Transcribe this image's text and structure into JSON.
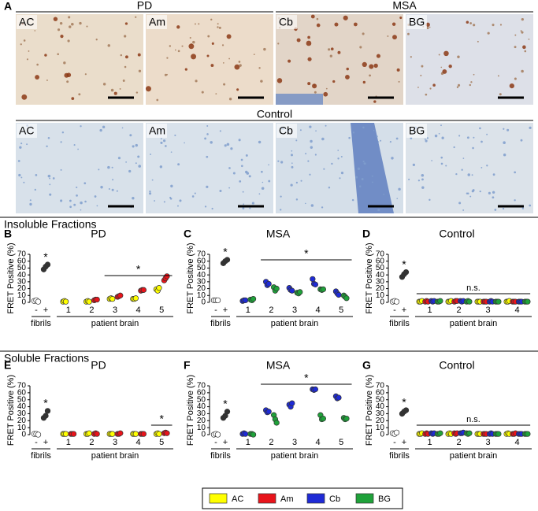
{
  "panel_a": {
    "label": "A",
    "rows": [
      {
        "groups": [
          "PD",
          "MSA"
        ],
        "tiles": [
          "AC",
          "Am",
          "Cb",
          "BG"
        ]
      },
      {
        "groups": [
          "Control"
        ],
        "tiles": [
          "AC",
          "Am",
          "Cb",
          "BG"
        ]
      }
    ]
  },
  "sections": [
    "Insoluble Fractions",
    "Soluble Fractions"
  ],
  "legend": [
    {
      "name": "AC",
      "color": "#ffff00"
    },
    {
      "name": "Am",
      "color": "#e8141b"
    },
    {
      "name": "Cb",
      "color": "#1f2bd6"
    },
    {
      "name": "BG",
      "color": "#1fa23a"
    }
  ],
  "chart_data": [
    {
      "type": "scatter",
      "panel": "B",
      "title": "PD",
      "ylabel": "FRET Positive (%)",
      "ylim": [
        0,
        70
      ],
      "yticks": [
        0,
        10,
        20,
        30,
        40,
        50,
        60,
        70
      ],
      "fibril_categories": [
        "-",
        "+"
      ],
      "fibril_label": "fibrils",
      "fibril_colors": [
        "#ffffff",
        "#333333"
      ],
      "fibril_values": [
        [
          2,
          3,
          1
        ],
        [
          48,
          52,
          55
        ]
      ],
      "fibril_mark": "*",
      "patients": [
        "1",
        "2",
        "3",
        "4",
        "5"
      ],
      "patient_label": "patient brain",
      "sig_label": "*",
      "series": [
        {
          "color": "#ffff00",
          "values": [
            [
              1,
              2,
              1
            ],
            [
              1,
              2,
              1
            ],
            [
              5,
              6,
              5
            ],
            [
              5,
              5,
              6
            ],
            [
              19,
              17,
              21
            ]
          ]
        },
        {
          "color": "#e8141b",
          "values": [
            null,
            [
              3,
              4,
              4
            ],
            [
              8,
              9,
              10
            ],
            [
              17,
              18,
              18
            ],
            [
              32,
              35,
              38
            ]
          ]
        }
      ]
    },
    {
      "type": "scatter",
      "panel": "C",
      "title": "MSA",
      "ylabel": "FRET Positive (%)",
      "ylim": [
        0,
        70
      ],
      "yticks": [
        0,
        10,
        20,
        30,
        40,
        50,
        60,
        70
      ],
      "fibril_categories": [
        "-",
        "+"
      ],
      "fibril_label": "fibrils",
      "fibril_colors": [
        "#ffffff",
        "#333333"
      ],
      "fibril_values": [
        [
          3,
          3,
          3
        ],
        [
          57,
          60,
          62
        ]
      ],
      "fibril_mark": "*",
      "patients": [
        "1",
        "2",
        "3",
        "4",
        "5"
      ],
      "patient_label": "patient brain",
      "sig_label": "*",
      "series": [
        {
          "color": "#1f2bd6",
          "values": [
            [
              2,
              3,
              3
            ],
            [
              30,
              25,
              27
            ],
            [
              21,
              18,
              17
            ],
            [
              34,
              27,
              26
            ],
            [
              16,
              13,
              11
            ]
          ]
        },
        {
          "color": "#1fa23a",
          "values": [
            [
              4,
              3,
              5
            ],
            [
              22,
              17,
              20
            ],
            [
              14,
              13,
              15
            ],
            [
              19,
              18,
              19
            ],
            [
              10,
              8,
              6
            ]
          ]
        }
      ]
    },
    {
      "type": "scatter",
      "panel": "D",
      "title": "Control",
      "ylabel": "FRET Positive (%)",
      "ylim": [
        0,
        70
      ],
      "yticks": [
        0,
        10,
        20,
        30,
        40,
        50,
        60,
        70
      ],
      "fibril_categories": [
        "-",
        "+"
      ],
      "fibril_label": "fibrils",
      "fibril_colors": [
        "#ffffff",
        "#333333"
      ],
      "fibril_values": [
        [
          1,
          2,
          1
        ],
        [
          37,
          41,
          44
        ]
      ],
      "fibril_mark": "*",
      "patients": [
        "1",
        "2",
        "3",
        "4"
      ],
      "patient_label": "patient brain",
      "sig_label": "n.s.",
      "series": [
        {
          "color": "#ffff00",
          "values": [
            [
              1,
              1,
              2
            ],
            [
              1,
              1,
              2
            ],
            [
              1,
              1,
              1
            ],
            [
              1,
              1,
              2
            ]
          ]
        },
        {
          "color": "#e8141b",
          "values": [
            [
              1,
              2,
              1
            ],
            [
              1,
              2,
              2
            ],
            [
              1,
              1,
              1
            ],
            [
              1,
              1,
              1
            ]
          ]
        },
        {
          "color": "#1f2bd6",
          "values": [
            [
              2,
              1,
              2
            ],
            [
              2,
              1,
              2
            ],
            [
              1,
              2,
              1
            ],
            [
              1,
              1,
              1
            ]
          ]
        },
        {
          "color": "#1fa23a",
          "values": [
            [
              1,
              1,
              2
            ],
            [
              1,
              2,
              1
            ],
            [
              1,
              1,
              1
            ],
            [
              1,
              1,
              1
            ]
          ]
        }
      ]
    },
    {
      "type": "scatter",
      "panel": "E",
      "title": "PD",
      "ylabel": "FRET Positive (%)",
      "ylim": [
        0,
        70
      ],
      "yticks": [
        0,
        10,
        20,
        30,
        40,
        50,
        60,
        70
      ],
      "fibril_categories": [
        "-",
        "+"
      ],
      "fibril_label": "fibrils",
      "fibril_colors": [
        "#ffffff",
        "#333333"
      ],
      "fibril_values": [
        [
          1,
          1,
          0
        ],
        [
          24,
          27,
          34
        ]
      ],
      "fibril_mark": "*",
      "patients": [
        "1",
        "2",
        "3",
        "4",
        "5"
      ],
      "patient_label": "patient brain",
      "sig_label": "*",
      "series": [
        {
          "color": "#ffff00",
          "values": [
            [
              1,
              1,
              1
            ],
            [
              1,
              1,
              2
            ],
            [
              1,
              1,
              1
            ],
            [
              1,
              1,
              1
            ],
            [
              1,
              2,
              1
            ]
          ]
        },
        {
          "color": "#e8141b",
          "values": [
            [
              1,
              1,
              1
            ],
            [
              1,
              2,
              1
            ],
            [
              1,
              1,
              2
            ],
            [
              1,
              1,
              1
            ],
            [
              2,
              3,
              2
            ]
          ]
        }
      ]
    },
    {
      "type": "scatter",
      "panel": "F",
      "title": "MSA",
      "ylabel": "FRET Positive (%)",
      "ylim": [
        0,
        70
      ],
      "yticks": [
        0,
        10,
        20,
        30,
        40,
        50,
        60,
        70
      ],
      "fibril_categories": [
        "-",
        "+"
      ],
      "fibril_label": "fibrils",
      "fibril_colors": [
        "#ffffff",
        "#333333"
      ],
      "fibril_values": [
        [
          0,
          1,
          0
        ],
        [
          24,
          27,
          33
        ]
      ],
      "fibril_mark": "*",
      "patients": [
        "1",
        "2",
        "3",
        "4",
        "5"
      ],
      "patient_label": "patient brain",
      "sig_label": "*",
      "series": [
        {
          "color": "#1f2bd6",
          "values": [
            [
              1,
              2,
              1
            ],
            [
              35,
              32,
              33
            ],
            [
              43,
              40,
              45
            ],
            [
              65,
              64,
              65
            ],
            [
              55,
              52,
              53
            ]
          ]
        },
        {
          "color": "#1fa23a",
          "values": [
            [
              1,
              1,
              0
            ],
            [
              28,
              22,
              17
            ],
            null,
            [
              28,
              22,
              23
            ],
            [
              24,
              22,
              23
            ]
          ]
        }
      ]
    },
    {
      "type": "scatter",
      "panel": "G",
      "title": "Control",
      "ylabel": "FRET Positive (%)",
      "ylim": [
        0,
        70
      ],
      "yticks": [
        0,
        10,
        20,
        30,
        40,
        50,
        60,
        70
      ],
      "fibril_categories": [
        "-",
        "+"
      ],
      "fibril_label": "fibrils",
      "fibril_colors": [
        "#ffffff",
        "#333333"
      ],
      "fibril_values": [
        [
          2,
          1,
          3
        ],
        [
          30,
          33,
          35
        ]
      ],
      "fibril_mark": "*",
      "patients": [
        "1",
        "2",
        "3",
        "4"
      ],
      "patient_label": "patient brain",
      "sig_label": "n.s.",
      "series": [
        {
          "color": "#ffff00",
          "values": [
            [
              1,
              1,
              2
            ],
            [
              1,
              2,
              1
            ],
            [
              1,
              1,
              1
            ],
            [
              1,
              2,
              1
            ]
          ]
        },
        {
          "color": "#e8141b",
          "values": [
            [
              1,
              2,
              1
            ],
            [
              2,
              1,
              2
            ],
            [
              1,
              1,
              1
            ],
            [
              1,
              1,
              2
            ]
          ]
        },
        {
          "color": "#1f2bd6",
          "values": [
            [
              2,
              1,
              2
            ],
            [
              2,
              2,
              3
            ],
            [
              1,
              2,
              1
            ],
            [
              1,
              1,
              1
            ]
          ]
        },
        {
          "color": "#1fa23a",
          "values": [
            [
              1,
              1,
              2
            ],
            [
              2,
              1,
              2
            ],
            [
              1,
              1,
              1
            ],
            [
              1,
              1,
              1
            ]
          ]
        }
      ]
    }
  ]
}
